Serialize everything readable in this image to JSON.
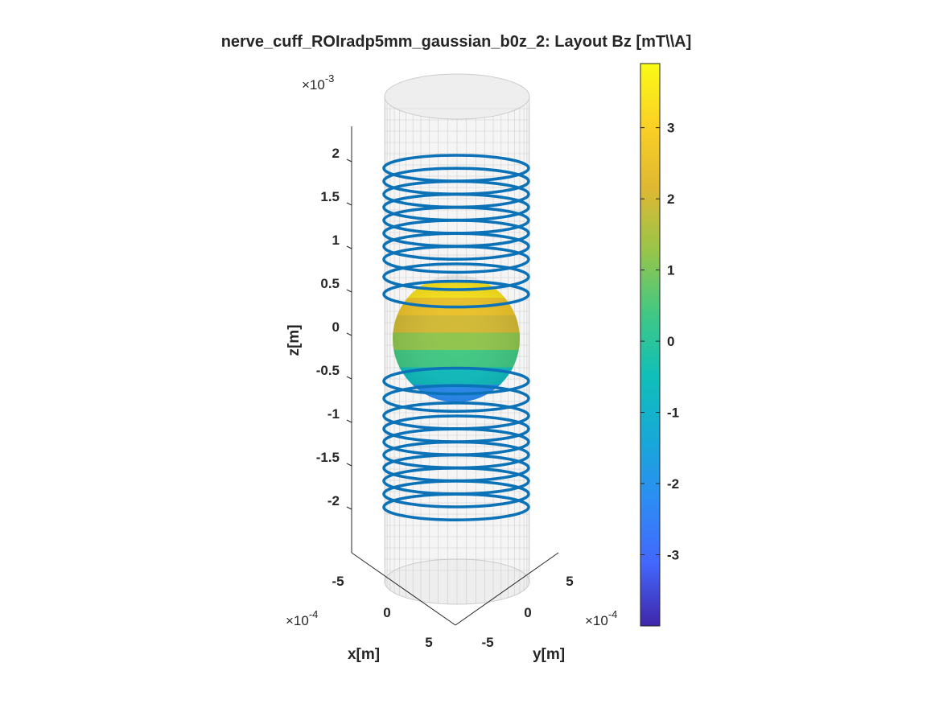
{
  "chart_data": {
    "type": "scatter",
    "plot_kind": "3d-surface-with-coil-wires",
    "title": "nerve_cuff_ROIradp5mm_gaussian_b0z_2: Layout Bz [mT\\\\A]",
    "xlabel": "x[m]",
    "ylabel": "y[m]",
    "zlabel": "z[m]",
    "x_exponent_label": "×10",
    "x_exponent": "-4",
    "y_exponent_label": "×10",
    "y_exponent": "-4",
    "z_exponent_label": "×10",
    "z_exponent": "-3",
    "x_ticks": [
      "-5",
      "0",
      "5"
    ],
    "y_ticks": [
      "-5",
      "0",
      "5"
    ],
    "z_ticks": [
      "2",
      "1.5",
      "1",
      "0.5",
      "0",
      "-0.5",
      "-1",
      "-1.5",
      "-2"
    ],
    "colorbar": {
      "range": [
        -4,
        3.9
      ],
      "ticks": [
        "3",
        "2",
        "1",
        "0",
        "-1",
        "-2",
        "-3"
      ],
      "colormap": "parula",
      "colors": [
        "#3e26a8",
        "#4367fd",
        "#2d8cf3",
        "#17a9d7",
        "#10bfb9",
        "#41c884",
        "#97c54a",
        "#dfb832",
        "#fbd025",
        "#f9fb15"
      ]
    },
    "coil_color": "#0c72b8",
    "cylinder_color": "#d9d9d9",
    "series": [
      {
        "name": "coil loops",
        "z": [
          2.0,
          1.85,
          1.7,
          1.55,
          1.4,
          1.25,
          1.1,
          0.95,
          0.75,
          0.55,
          -0.45,
          -0.65,
          -0.85,
          -1.0,
          -1.15,
          -1.3,
          -1.45,
          -1.6,
          -1.75,
          -1.9
        ]
      },
      {
        "name": "ROI sphere Bz",
        "z": [
          0.55,
          0.35,
          0.15,
          -0.05,
          -0.25,
          -0.45,
          -0.65
        ],
        "values": [
          3.4,
          2.6,
          2.0,
          1.2,
          0.4,
          -0.6,
          -2.2
        ]
      }
    ]
  }
}
